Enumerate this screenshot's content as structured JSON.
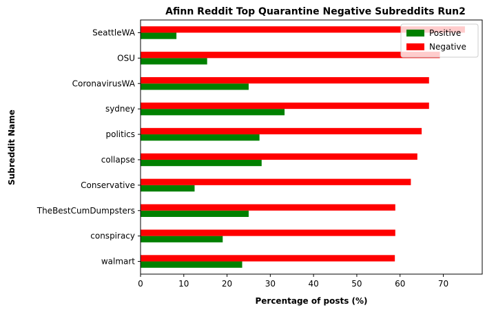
{
  "chart_data": {
    "type": "bar",
    "orientation": "horizontal",
    "title": "Afinn Reddit Top Quarantine Negative Subreddits Run2",
    "xlabel": "Percentage of posts (%)",
    "ylabel": "Subreddit Name",
    "xlim": [
      0,
      79
    ],
    "xticks": [
      0,
      10,
      20,
      30,
      40,
      50,
      60,
      70
    ],
    "categories": [
      "SeattleWA",
      "OSU",
      "CoronavirusWA",
      "sydney",
      "politics",
      "collapse",
      "Conservative",
      "TheBestCumDumpsters",
      "conspiracy",
      "walmart"
    ],
    "series": [
      {
        "name": "Positive",
        "color": "#008000",
        "values": [
          8.3,
          15.4,
          25.0,
          33.3,
          27.5,
          28.0,
          12.5,
          25.0,
          19.0,
          23.5
        ]
      },
      {
        "name": "Negative",
        "color": "#ff0000",
        "values": [
          75.0,
          69.2,
          66.7,
          66.7,
          65.0,
          64.0,
          62.5,
          58.9,
          58.9,
          58.8
        ]
      }
    ],
    "legend": {
      "position": "top-right",
      "entries": [
        "Positive",
        "Negative"
      ]
    },
    "grid": false
  }
}
